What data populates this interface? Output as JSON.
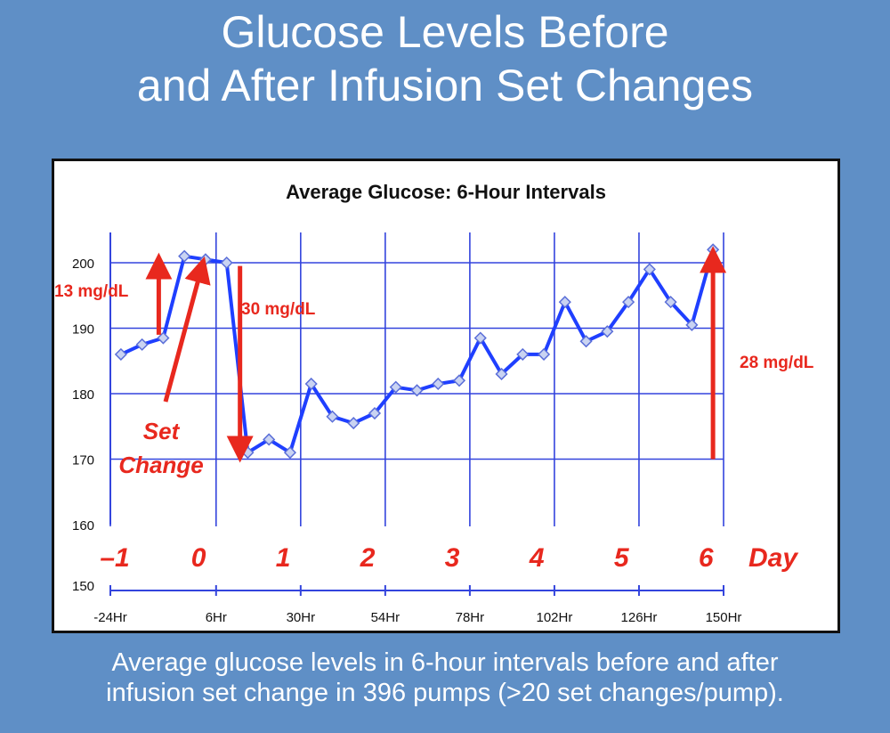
{
  "slide": {
    "title_line1": "Glucose Levels Before",
    "title_line2": "and After Infusion Set Changes",
    "caption_line1": "Average glucose levels in 6-hour intervals before and after",
    "caption_line2": "infusion set change in 396 pumps (>20 set changes/pump)."
  },
  "colors": {
    "background": "#5f8fc6",
    "series": "#1f3fff",
    "marker": "#c9d3f2",
    "annotation": "#e8281e",
    "grid": "#3344dd"
  },
  "chart_data": {
    "type": "line",
    "title": "Average Glucose: 6-Hour Intervals",
    "xlabel": "",
    "ylabel": "",
    "x_ticks": [
      "-24Hr",
      "6Hr",
      "30Hr",
      "54Hr",
      "78Hr",
      "102Hr",
      "126Hr",
      "150Hr"
    ],
    "x_tick_hours": [
      -24,
      6,
      30,
      54,
      78,
      102,
      126,
      150
    ],
    "day_labels": [
      "–1",
      "0",
      "1",
      "2",
      "3",
      "4",
      "5",
      "6"
    ],
    "day_label_hours": [
      -24,
      0,
      24,
      48,
      72,
      96,
      120,
      144
    ],
    "day_axis_label": "Day",
    "y_ticks": [
      "200",
      "190",
      "180",
      "170",
      "160",
      "150"
    ],
    "y_tick_values": [
      200,
      190,
      180,
      170,
      160,
      150
    ],
    "ylim": [
      150,
      205
    ],
    "xlim": [
      -24,
      150
    ],
    "grid": true,
    "series": [
      {
        "x": [
          -21,
          -15,
          -9,
          -3,
          3,
          9,
          15,
          21,
          27,
          33,
          39,
          45,
          51,
          57,
          63,
          69,
          75,
          81,
          87,
          93,
          99,
          105,
          111,
          117,
          123,
          129,
          135,
          141,
          147
        ],
        "y": [
          186,
          187.5,
          188.5,
          201,
          200.5,
          200,
          171,
          173,
          171,
          181.5,
          176.5,
          175.5,
          177,
          181,
          180.5,
          181.5,
          182,
          188.5,
          183,
          186,
          186,
          194,
          188,
          189.5,
          194,
          199,
          194,
          190.5,
          202
        ]
      }
    ],
    "annotations": [
      {
        "text": "13 mg/dL"
      },
      {
        "text": "30 mg/dL"
      },
      {
        "text": "28 mg/dL"
      },
      {
        "text_line1": "Set",
        "text_line2": "Change"
      }
    ]
  }
}
